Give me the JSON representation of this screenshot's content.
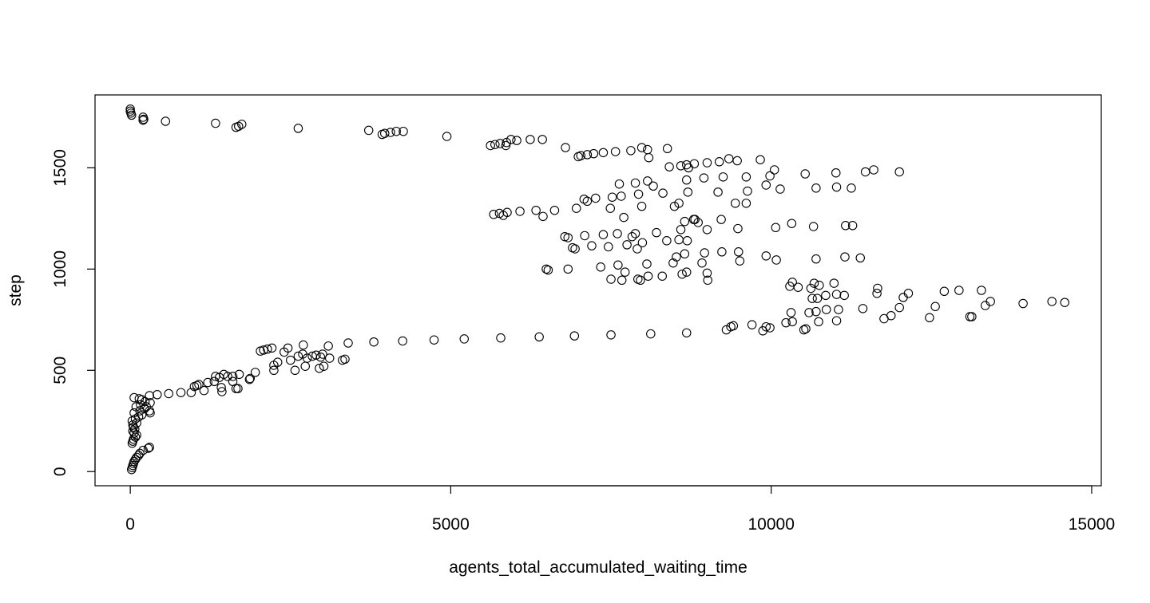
{
  "chart_data": {
    "type": "scatter",
    "title": "",
    "xlabel": "agents_total_accumulated_waiting_time",
    "ylabel": "step",
    "xlim": [
      -550,
      15150
    ],
    "ylim": [
      -70,
      1860
    ],
    "x_ticks": [
      0,
      5000,
      10000,
      15000
    ],
    "x_tick_labels": [
      "0",
      "5000",
      "10000",
      "15000"
    ],
    "y_ticks": [
      0,
      500,
      1000,
      1500
    ],
    "y_tick_labels": [
      "0",
      "500",
      "1000",
      "1500"
    ],
    "grid": false,
    "legend": "none",
    "marker": "open-circle",
    "marker_color": "#000000",
    "points": [
      [
        0,
        1790
      ],
      [
        0,
        1780
      ],
      [
        10,
        1770
      ],
      [
        20,
        1760
      ],
      [
        200,
        1750
      ],
      [
        210,
        1740
      ],
      [
        200,
        1735
      ],
      [
        550,
        1730
      ],
      [
        1330,
        1720
      ],
      [
        1650,
        1700
      ],
      [
        1690,
        1705
      ],
      [
        1740,
        1715
      ],
      [
        2620,
        1695
      ],
      [
        3720,
        1685
      ],
      [
        3930,
        1665
      ],
      [
        3970,
        1670
      ],
      [
        4060,
        1675
      ],
      [
        4150,
        1680
      ],
      [
        4260,
        1680
      ],
      [
        4940,
        1655
      ],
      [
        5620,
        1610
      ],
      [
        5690,
        1615
      ],
      [
        5770,
        1620
      ],
      [
        5860,
        1610
      ],
      [
        5870,
        1625
      ],
      [
        5940,
        1640
      ],
      [
        6030,
        1635
      ],
      [
        6240,
        1640
      ],
      [
        6430,
        1640
      ],
      [
        6790,
        1600
      ],
      [
        6990,
        1555
      ],
      [
        7030,
        1560
      ],
      [
        7130,
        1565
      ],
      [
        7230,
        1570
      ],
      [
        7380,
        1575
      ],
      [
        7570,
        1580
      ],
      [
        7810,
        1585
      ],
      [
        7980,
        1600
      ],
      [
        8070,
        1590
      ],
      [
        8090,
        1550
      ],
      [
        8380,
        1595
      ],
      [
        8410,
        1505
      ],
      [
        8590,
        1510
      ],
      [
        8680,
        1515
      ],
      [
        8710,
        1500
      ],
      [
        8800,
        1520
      ],
      [
        9000,
        1525
      ],
      [
        9190,
        1530
      ],
      [
        9340,
        1545
      ],
      [
        9470,
        1535
      ],
      [
        9830,
        1540
      ],
      [
        9980,
        1460
      ],
      [
        10050,
        1490
      ],
      [
        10530,
        1470
      ],
      [
        11010,
        1475
      ],
      [
        11470,
        1480
      ],
      [
        11600,
        1490
      ],
      [
        12000,
        1480
      ],
      [
        7630,
        1420
      ],
      [
        7880,
        1425
      ],
      [
        8070,
        1435
      ],
      [
        8160,
        1410
      ],
      [
        8310,
        1375
      ],
      [
        8490,
        1310
      ],
      [
        8560,
        1325
      ],
      [
        8680,
        1440
      ],
      [
        8700,
        1380
      ],
      [
        8950,
        1450
      ],
      [
        9170,
        1380
      ],
      [
        9250,
        1455
      ],
      [
        9440,
        1325
      ],
      [
        9610,
        1455
      ],
      [
        9630,
        1385
      ],
      [
        9920,
        1415
      ],
      [
        10140,
        1395
      ],
      [
        10700,
        1400
      ],
      [
        11020,
        1405
      ],
      [
        11250,
        1400
      ],
      [
        5670,
        1270
      ],
      [
        5760,
        1275
      ],
      [
        5820,
        1265
      ],
      [
        5880,
        1280
      ],
      [
        6080,
        1285
      ],
      [
        6330,
        1290
      ],
      [
        6440,
        1260
      ],
      [
        6620,
        1290
      ],
      [
        6960,
        1300
      ],
      [
        7080,
        1345
      ],
      [
        7130,
        1335
      ],
      [
        7260,
        1350
      ],
      [
        7490,
        1300
      ],
      [
        7520,
        1355
      ],
      [
        7660,
        1360
      ],
      [
        7700,
        1255
      ],
      [
        7930,
        1370
      ],
      [
        7980,
        1310
      ],
      [
        8650,
        1235
      ],
      [
        8810,
        1245
      ],
      [
        8860,
        1230
      ],
      [
        9000,
        1195
      ],
      [
        9220,
        1245
      ],
      [
        9480,
        1200
      ],
      [
        9610,
        1325
      ],
      [
        10070,
        1205
      ],
      [
        10320,
        1225
      ],
      [
        10660,
        1210
      ],
      [
        11160,
        1215
      ],
      [
        11270,
        1215
      ],
      [
        6780,
        1160
      ],
      [
        6830,
        1155
      ],
      [
        6900,
        1105
      ],
      [
        6940,
        1100
      ],
      [
        7090,
        1165
      ],
      [
        7200,
        1115
      ],
      [
        7380,
        1170
      ],
      [
        7460,
        1110
      ],
      [
        7600,
        1175
      ],
      [
        7750,
        1120
      ],
      [
        7830,
        1160
      ],
      [
        7880,
        1175
      ],
      [
        7910,
        1100
      ],
      [
        7990,
        1130
      ],
      [
        8210,
        1180
      ],
      [
        8370,
        1140
      ],
      [
        8560,
        1145
      ],
      [
        8590,
        1195
      ],
      [
        8650,
        1075
      ],
      [
        8690,
        1140
      ],
      [
        8790,
        1245
      ],
      [
        8960,
        1080
      ],
      [
        9230,
        1085
      ],
      [
        9490,
        1085
      ],
      [
        6490,
        1000
      ],
      [
        6520,
        995
      ],
      [
        6830,
        1000
      ],
      [
        7340,
        1010
      ],
      [
        7500,
        950
      ],
      [
        7610,
        1020
      ],
      [
        7670,
        945
      ],
      [
        7720,
        985
      ],
      [
        7920,
        950
      ],
      [
        7960,
        945
      ],
      [
        8060,
        1025
      ],
      [
        8080,
        965
      ],
      [
        8300,
        965
      ],
      [
        8470,
        1030
      ],
      [
        8520,
        1060
      ],
      [
        8610,
        975
      ],
      [
        8680,
        985
      ],
      [
        8920,
        1030
      ],
      [
        9000,
        980
      ],
      [
        9010,
        945
      ],
      [
        9510,
        1040
      ],
      [
        9920,
        1065
      ],
      [
        10080,
        1045
      ],
      [
        10700,
        1050
      ],
      [
        11150,
        1060
      ],
      [
        11390,
        1055
      ],
      [
        10290,
        915
      ],
      [
        10330,
        935
      ],
      [
        10420,
        910
      ],
      [
        10620,
        905
      ],
      [
        10670,
        930
      ],
      [
        10750,
        920
      ],
      [
        10980,
        930
      ],
      [
        11660,
        905
      ],
      [
        10640,
        855
      ],
      [
        10720,
        855
      ],
      [
        10850,
        870
      ],
      [
        11020,
        875
      ],
      [
        11140,
        870
      ],
      [
        11650,
        880
      ],
      [
        12060,
        860
      ],
      [
        12140,
        880
      ],
      [
        12700,
        890
      ],
      [
        12930,
        895
      ],
      [
        13280,
        895
      ],
      [
        10310,
        785
      ],
      [
        10590,
        785
      ],
      [
        10700,
        790
      ],
      [
        10860,
        800
      ],
      [
        11050,
        800
      ],
      [
        11430,
        805
      ],
      [
        11760,
        755
      ],
      [
        11870,
        770
      ],
      [
        12000,
        810
      ],
      [
        12470,
        760
      ],
      [
        12560,
        815
      ],
      [
        13100,
        765
      ],
      [
        13130,
        765
      ],
      [
        13340,
        820
      ],
      [
        13420,
        840
      ],
      [
        13930,
        830
      ],
      [
        14380,
        840
      ],
      [
        14580,
        835
      ],
      [
        9300,
        700
      ],
      [
        9370,
        715
      ],
      [
        9410,
        720
      ],
      [
        9700,
        725
      ],
      [
        9870,
        695
      ],
      [
        9920,
        715
      ],
      [
        9980,
        710
      ],
      [
        10230,
        735
      ],
      [
        10330,
        740
      ],
      [
        10510,
        700
      ],
      [
        10540,
        705
      ],
      [
        10740,
        740
      ],
      [
        11020,
        745
      ],
      [
        3400,
        635
      ],
      [
        3800,
        640
      ],
      [
        4250,
        645
      ],
      [
        4740,
        650
      ],
      [
        5210,
        655
      ],
      [
        5780,
        660
      ],
      [
        6380,
        665
      ],
      [
        6930,
        670
      ],
      [
        7500,
        675
      ],
      [
        8120,
        680
      ],
      [
        8680,
        685
      ],
      [
        2030,
        595
      ],
      [
        2080,
        600
      ],
      [
        2140,
        605
      ],
      [
        2240,
        525
      ],
      [
        2210,
        610
      ],
      [
        2300,
        540
      ],
      [
        2400,
        590
      ],
      [
        2460,
        610
      ],
      [
        2500,
        550
      ],
      [
        2570,
        500
      ],
      [
        2620,
        570
      ],
      [
        2690,
        580
      ],
      [
        2700,
        625
      ],
      [
        2730,
        520
      ],
      [
        2760,
        560
      ],
      [
        2840,
        570
      ],
      [
        2900,
        575
      ],
      [
        2950,
        510
      ],
      [
        2970,
        565
      ],
      [
        3000,
        580
      ],
      [
        3020,
        520
      ],
      [
        3090,
        620
      ],
      [
        3110,
        560
      ],
      [
        3310,
        550
      ],
      [
        3350,
        555
      ],
      [
        2240,
        500
      ],
      [
        950,
        390
      ],
      [
        1000,
        420
      ],
      [
        1040,
        425
      ],
      [
        1070,
        430
      ],
      [
        1150,
        400
      ],
      [
        1210,
        440
      ],
      [
        1310,
        445
      ],
      [
        1330,
        470
      ],
      [
        1390,
        465
      ],
      [
        1420,
        415
      ],
      [
        1430,
        395
      ],
      [
        1460,
        480
      ],
      [
        1520,
        470
      ],
      [
        1600,
        470
      ],
      [
        1600,
        445
      ],
      [
        1650,
        410
      ],
      [
        1680,
        410
      ],
      [
        1700,
        480
      ],
      [
        1860,
        455
      ],
      [
        1870,
        460
      ],
      [
        1950,
        490
      ],
      [
        20,
        10
      ],
      [
        30,
        20
      ],
      [
        40,
        30
      ],
      [
        50,
        40
      ],
      [
        60,
        50
      ],
      [
        80,
        60
      ],
      [
        100,
        70
      ],
      [
        130,
        80
      ],
      [
        150,
        90
      ],
      [
        200,
        105
      ],
      [
        280,
        115
      ],
      [
        300,
        120
      ],
      [
        30,
        140
      ],
      [
        40,
        150
      ],
      [
        50,
        160
      ],
      [
        80,
        170
      ],
      [
        100,
        180
      ],
      [
        60,
        190
      ],
      [
        40,
        200
      ],
      [
        70,
        210
      ],
      [
        50,
        220
      ],
      [
        40,
        230
      ],
      [
        100,
        240
      ],
      [
        30,
        250
      ],
      [
        80,
        260
      ],
      [
        130,
        270
      ],
      [
        180,
        280
      ],
      [
        60,
        290
      ],
      [
        150,
        300
      ],
      [
        220,
        310
      ],
      [
        90,
        320
      ],
      [
        310,
        290
      ],
      [
        300,
        300
      ],
      [
        160,
        330
      ],
      [
        230,
        345
      ],
      [
        180,
        355
      ],
      [
        60,
        365
      ],
      [
        140,
        360
      ],
      [
        300,
        375
      ],
      [
        420,
        380
      ],
      [
        600,
        385
      ],
      [
        790,
        390
      ],
      [
        310,
        340
      ],
      [
        250,
        320
      ]
    ]
  }
}
